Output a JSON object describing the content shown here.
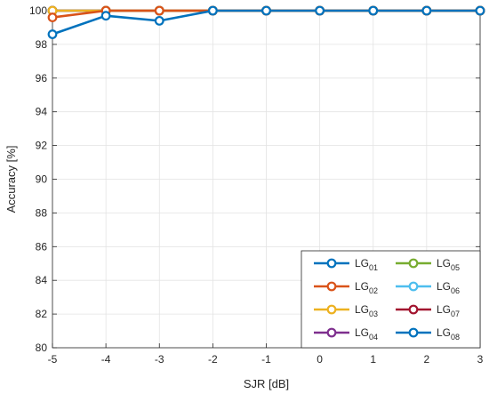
{
  "chart_data": {
    "type": "line",
    "title": "",
    "xlabel": "SJR [dB]",
    "ylabel": "Accuracy [%]",
    "xlim": [
      -5,
      3
    ],
    "ylim": [
      80,
      100
    ],
    "x": [
      -5,
      -4,
      -3,
      -2,
      -1,
      0,
      1,
      2,
      3
    ],
    "x_ticks": [
      -5,
      -4,
      -3,
      -2,
      -1,
      0,
      1,
      2,
      3
    ],
    "y_ticks": [
      80,
      82,
      84,
      86,
      88,
      90,
      92,
      94,
      96,
      98,
      100
    ],
    "grid": true,
    "legend_position": "bottom-right",
    "legend_columns": 2,
    "marker": "circle",
    "series": [
      {
        "name": "LG",
        "sub": "01",
        "color": "#0072BD",
        "values": [
          98.6,
          99.7,
          99.4,
          100,
          100,
          100,
          100,
          100,
          100
        ]
      },
      {
        "name": "LG",
        "sub": "02",
        "color": "#D95319",
        "values": [
          99.6,
          100,
          100,
          100,
          100,
          100,
          100,
          100,
          100
        ]
      },
      {
        "name": "LG",
        "sub": "03",
        "color": "#EDB120",
        "values": [
          100,
          100,
          100,
          100,
          100,
          100,
          100,
          100,
          100
        ]
      },
      {
        "name": "LG",
        "sub": "04",
        "color": "#7E2F8E",
        "values": [
          100,
          100,
          100,
          100,
          100,
          100,
          100,
          100,
          100
        ]
      },
      {
        "name": "LG",
        "sub": "05",
        "color": "#77AC30",
        "values": [
          100,
          100,
          100,
          100,
          100,
          100,
          100,
          100,
          100
        ]
      },
      {
        "name": "LG",
        "sub": "06",
        "color": "#4DBEEE",
        "values": [
          100,
          100,
          100,
          100,
          100,
          100,
          100,
          100,
          100
        ]
      },
      {
        "name": "LG",
        "sub": "07",
        "color": "#A2142F",
        "values": [
          100,
          100,
          100,
          100,
          100,
          100,
          100,
          100,
          100
        ]
      },
      {
        "name": "LG",
        "sub": "08",
        "color": "#0072BD",
        "values": [
          100,
          100,
          100,
          100,
          100,
          100,
          100,
          100,
          100
        ]
      }
    ]
  }
}
